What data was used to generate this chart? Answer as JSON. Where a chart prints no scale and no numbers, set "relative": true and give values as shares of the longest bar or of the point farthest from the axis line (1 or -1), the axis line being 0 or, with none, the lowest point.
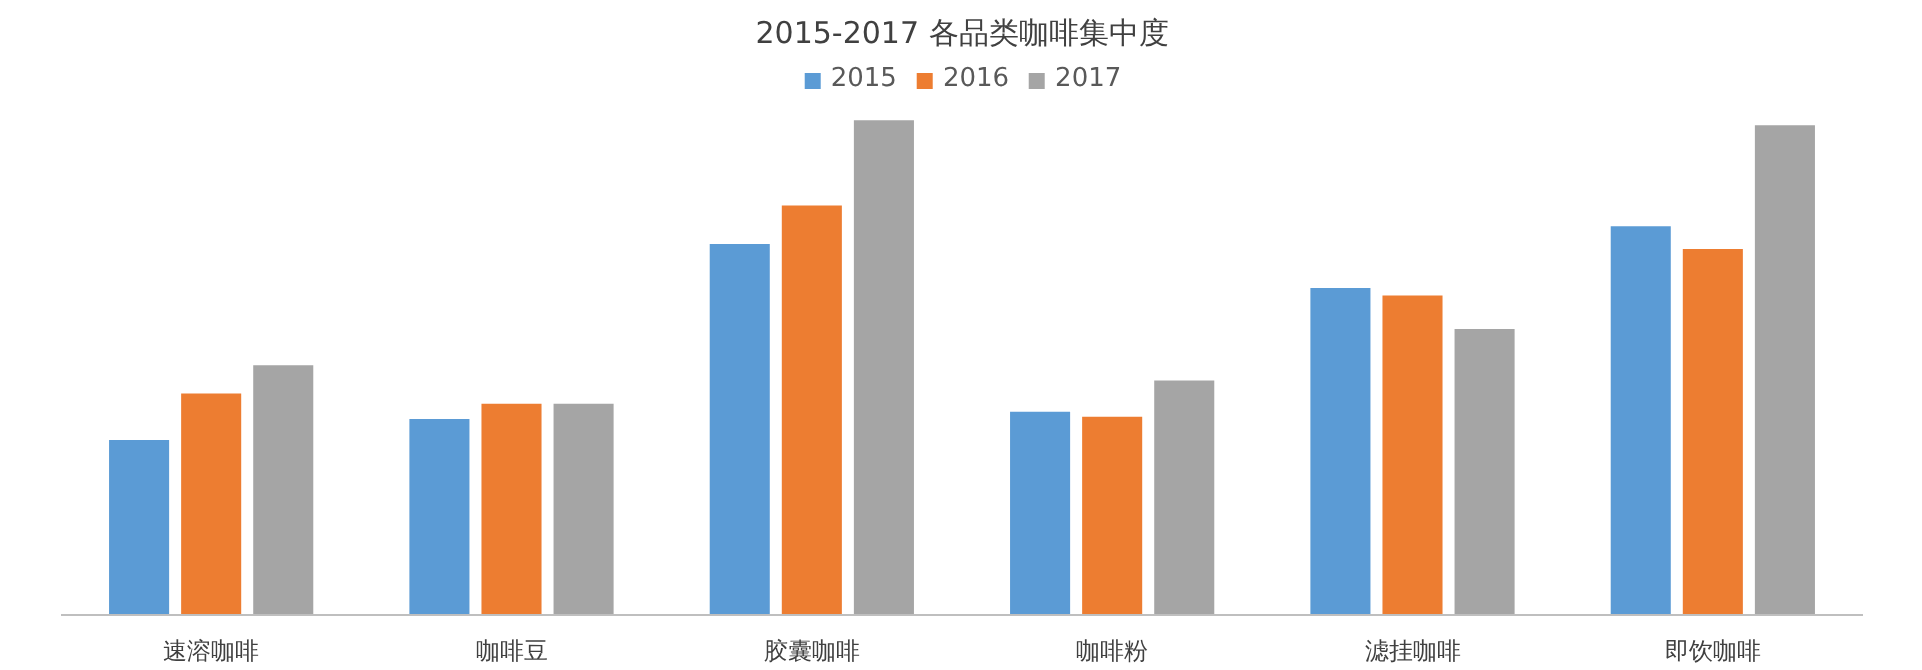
{
  "chart_data": {
    "type": "bar",
    "title": "2015-2017 各品类咖啡集中度",
    "relative": true,
    "legend": "top",
    "grid": false,
    "categories": [
      "速溶咖啡",
      "咖啡豆",
      "胶囊咖啡",
      "咖啡粉",
      "滤挂咖啡",
      "即饮咖啡"
    ],
    "series": [
      {
        "name": "2015",
        "color": "#5b9bd5",
        "values": [
          0.354,
          0.396,
          0.75,
          0.411,
          0.661,
          0.786
        ]
      },
      {
        "name": "2016",
        "color": "#ed7d31",
        "values": [
          0.448,
          0.427,
          0.828,
          0.401,
          0.646,
          0.74
        ]
      },
      {
        "name": "2017",
        "color": "#a5a5a5",
        "values": [
          0.505,
          0.427,
          1,
          0.474,
          0.578,
          0.99
        ]
      }
    ]
  }
}
